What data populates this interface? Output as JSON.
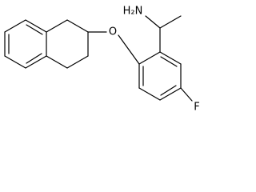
{
  "atoms": [
    {
      "label": "H₂N"
    },
    {
      "label": "O"
    },
    {
      "label": "F"
    }
  ]
}
